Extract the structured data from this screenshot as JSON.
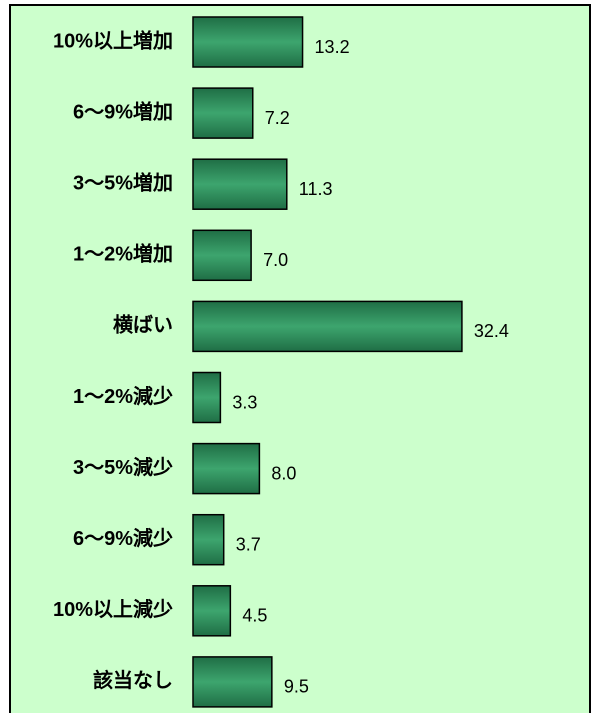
{
  "chart_data": {
    "type": "bar",
    "orientation": "horizontal",
    "categories": [
      "10%以上増加",
      "6～9%増加",
      "3～5%増加",
      "1～2%増加",
      "横ばい",
      "1～2%減少",
      "3～5%減少",
      "6～9%減少",
      "10%以上減少",
      "該当なし"
    ],
    "values": [
      13.2,
      7.2,
      11.3,
      7.0,
      32.4,
      3.3,
      8.0,
      3.7,
      4.5,
      9.5
    ],
    "value_labels": [
      "13.2",
      "7.2",
      "11.3",
      "7.0",
      "32.4",
      "3.3",
      "8.0",
      "3.7",
      "4.5",
      "9.5"
    ],
    "color": "#2e8b57"
  }
}
